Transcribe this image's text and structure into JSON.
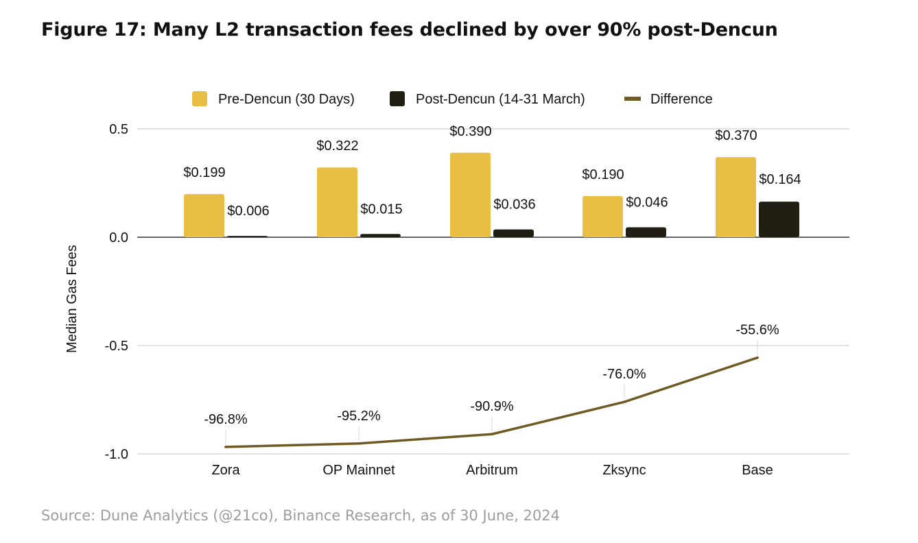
{
  "header": {
    "title": "Figure 17: Many L2 transaction fees declined by over 90% post-Dencun"
  },
  "footer": {
    "source": "Source: Dune Analytics (@21co), Binance Research, as of 30 June, 2024"
  },
  "colors": {
    "pre": "#E9BE45",
    "post": "#231E14",
    "diff": "#6E5A22",
    "grid": "#D0D0D0",
    "baseline": "#333333"
  },
  "chart_data": {
    "type": "bar",
    "ylabel": "Median Gas Fees",
    "ylim": [
      -1.0,
      0.5
    ],
    "yticks": [
      0.5,
      0.0,
      -0.5,
      -1.0
    ],
    "ytick_labels": [
      "0.5",
      "0.0",
      "-0.5",
      "-1.0"
    ],
    "categories": [
      "Zora",
      "OP Mainnet",
      "Arbitrum",
      "Zksync",
      "Base"
    ],
    "legend": {
      "position": "top",
      "entries": [
        "Pre-Dencun (30 Days)",
        "Post-Dencun (14-31 March)",
        "Difference"
      ]
    },
    "series": [
      {
        "name": "Pre-Dencun (30 Days)",
        "kind": "bar",
        "values": [
          0.199,
          0.322,
          0.39,
          0.19,
          0.37
        ],
        "labels": [
          "$0.199",
          "$0.322",
          "$0.390",
          "$0.190",
          "$0.370"
        ]
      },
      {
        "name": "Post-Dencun (14-31 March)",
        "kind": "bar",
        "values": [
          0.006,
          0.015,
          0.036,
          0.046,
          0.164
        ],
        "labels": [
          "$0.006",
          "$0.015",
          "$0.036",
          "$0.046",
          "$0.164"
        ]
      },
      {
        "name": "Difference",
        "kind": "line",
        "values": [
          -0.968,
          -0.952,
          -0.909,
          -0.76,
          -0.556
        ],
        "labels": [
          "-96.8%",
          "-95.2%",
          "-90.9%",
          "-76.0%",
          "-55.6%"
        ]
      }
    ]
  }
}
